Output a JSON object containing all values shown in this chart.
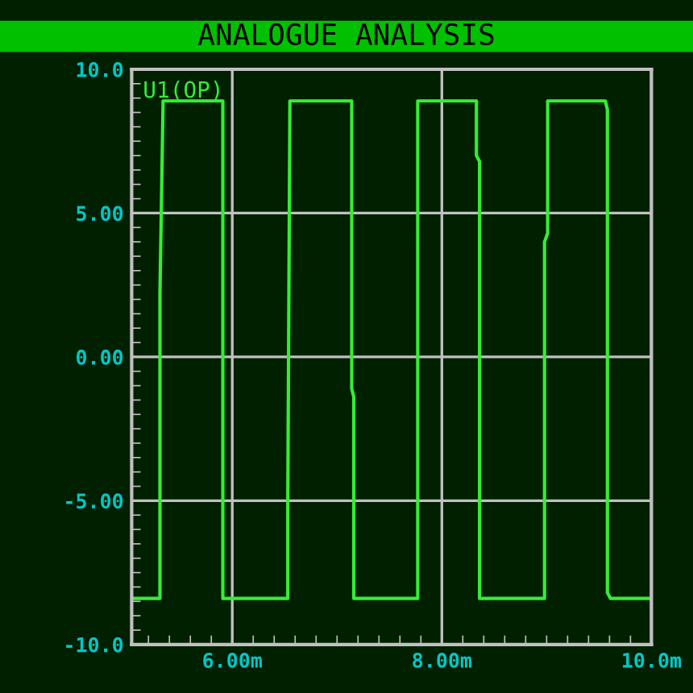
{
  "chart_data": {
    "type": "line",
    "title": "ANALOGUE ANALYSIS",
    "series": [
      {
        "name": "U1(OP)",
        "color": "#33ee33",
        "x": [
          5.04,
          5.31,
          5.31,
          5.34,
          5.91,
          5.91,
          6.53,
          6.53,
          6.55,
          7.14,
          7.14,
          7.16,
          7.16,
          7.77,
          7.77,
          8.33,
          8.33,
          8.36,
          8.36,
          8.98,
          8.98,
          9.01,
          9.01,
          9.56,
          9.58,
          9.58,
          9.61,
          10.0
        ],
        "values": [
          -8.4,
          -8.4,
          2.2,
          8.9,
          8.9,
          -8.4,
          -8.4,
          -5.0,
          8.9,
          8.9,
          -1.1,
          -1.4,
          -8.4,
          -8.4,
          8.9,
          8.9,
          7.0,
          6.8,
          -8.4,
          -8.4,
          4.0,
          4.3,
          8.9,
          8.9,
          8.6,
          -8.2,
          -8.4,
          -8.4
        ]
      }
    ],
    "xlim": [
      5.04,
      10.0
    ],
    "ylim": [
      -10,
      10
    ],
    "xticks": [
      {
        "value": 6,
        "label": "6.00m"
      },
      {
        "value": 8,
        "label": "8.00m"
      },
      {
        "value": 10,
        "label": "10.0m"
      }
    ],
    "yticks": [
      {
        "value": -10,
        "label": "-10.0"
      },
      {
        "value": -5,
        "label": "-5.00"
      },
      {
        "value": 0,
        "label": "0.00"
      },
      {
        "value": 5,
        "label": "5.00"
      },
      {
        "value": 10,
        "label": "10.0"
      }
    ],
    "grid": true,
    "legend": "top left",
    "marker": "none",
    "line_style": "solid"
  }
}
